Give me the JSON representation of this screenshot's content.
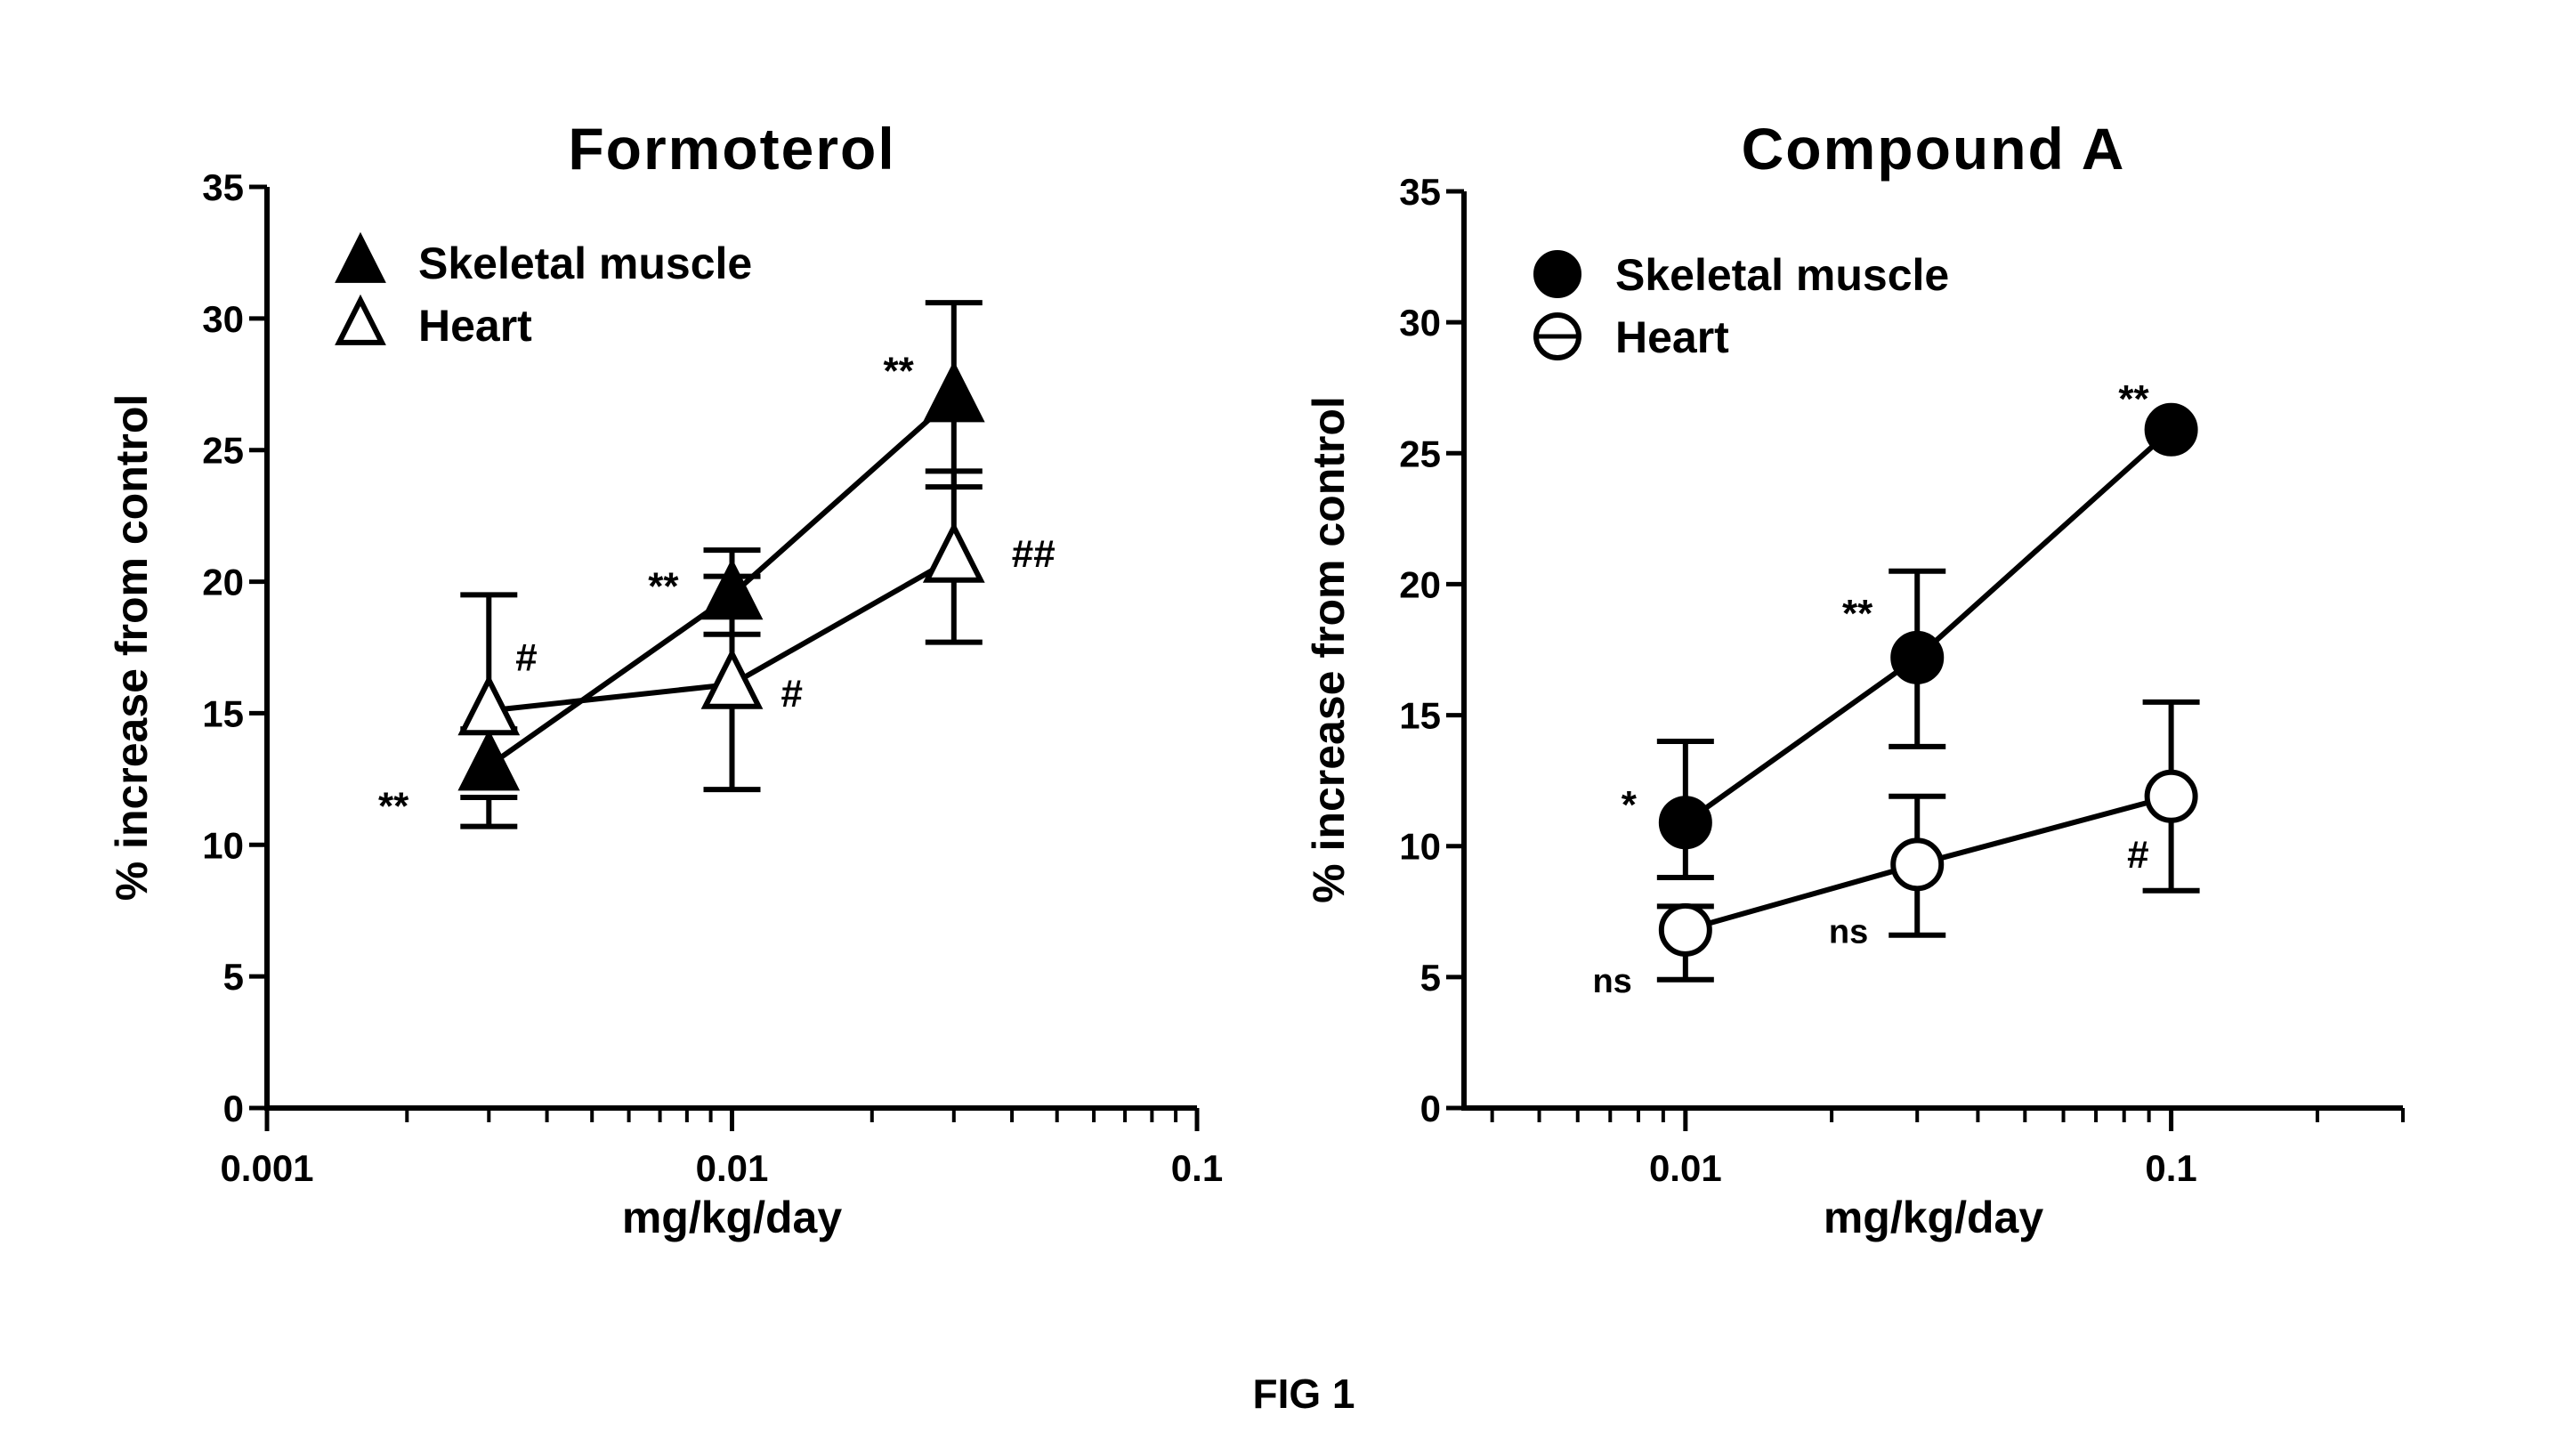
{
  "figure_label": "FIG 1",
  "colors": {
    "ink": "#000000",
    "background": "#ffffff"
  },
  "chart_data": [
    {
      "type": "scatter",
      "title": "Formoterol",
      "xlabel": "mg/kg/day",
      "ylabel": "% increase from control",
      "xscale": "log",
      "xlim": [
        0.001,
        0.1
      ],
      "ylim": [
        0,
        35
      ],
      "xticks": [
        0.001,
        0.01,
        0.1
      ],
      "xtick_labels": [
        "0.001",
        "0.01",
        "0.1"
      ],
      "yticks": [
        0,
        5,
        10,
        15,
        20,
        25,
        30,
        35
      ],
      "ytick_labels": [
        "0",
        "5",
        "10",
        "15",
        "20",
        "25",
        "30",
        "35"
      ],
      "grid": false,
      "legend_position": "top-left",
      "series": [
        {
          "name": "Skeletal muscle",
          "marker": "filled-triangle",
          "x": [
            0.003,
            0.01,
            0.03
          ],
          "y": [
            13.0,
            19.5,
            27.0
          ],
          "err_low": [
            10.7,
            18.0,
            23.6
          ],
          "err_high": [
            11.8,
            21.2,
            30.6
          ],
          "annotations": [
            "**",
            "**",
            "**"
          ]
        },
        {
          "name": "Heart",
          "marker": "open-triangle",
          "x": [
            0.003,
            0.01,
            0.03
          ],
          "y": [
            15.1,
            16.1,
            20.9
          ],
          "err_low": [
            14.4,
            12.1,
            17.7
          ],
          "err_high": [
            19.5,
            20.2,
            24.2
          ],
          "annotations": [
            "#",
            "#",
            "##"
          ]
        }
      ]
    },
    {
      "type": "scatter",
      "title": "Compound A",
      "xlabel": "mg/kg/day",
      "ylabel": "% increase from control",
      "xscale": "log",
      "xlim": [
        0.0035,
        0.3
      ],
      "ylim": [
        0,
        35
      ],
      "xticks": [
        0.01,
        0.1
      ],
      "xtick_labels": [
        "0.01",
        "0.1"
      ],
      "yticks": [
        0,
        5,
        10,
        15,
        20,
        25,
        30,
        35
      ],
      "ytick_labels": [
        "0",
        "5",
        "10",
        "15",
        "20",
        "25",
        "30",
        "35"
      ],
      "grid": false,
      "legend_position": "top-left",
      "series": [
        {
          "name": "Skeletal muscle",
          "marker": "filled-circle",
          "x": [
            0.01,
            0.03,
            0.1
          ],
          "y": [
            10.9,
            17.2,
            25.9
          ],
          "err_low": [
            8.8,
            13.8,
            25.9
          ],
          "err_high": [
            14.0,
            20.5,
            25.9
          ],
          "annotations": [
            "*",
            "**",
            "**"
          ]
        },
        {
          "name": "Heart",
          "marker": "open-circle",
          "x": [
            0.01,
            0.03,
            0.1
          ],
          "y": [
            6.8,
            9.3,
            11.9
          ],
          "err_low": [
            4.9,
            6.6,
            8.3
          ],
          "err_high": [
            7.7,
            11.9,
            15.5
          ],
          "annotations": [
            "ns",
            "ns",
            "#"
          ]
        }
      ]
    }
  ]
}
